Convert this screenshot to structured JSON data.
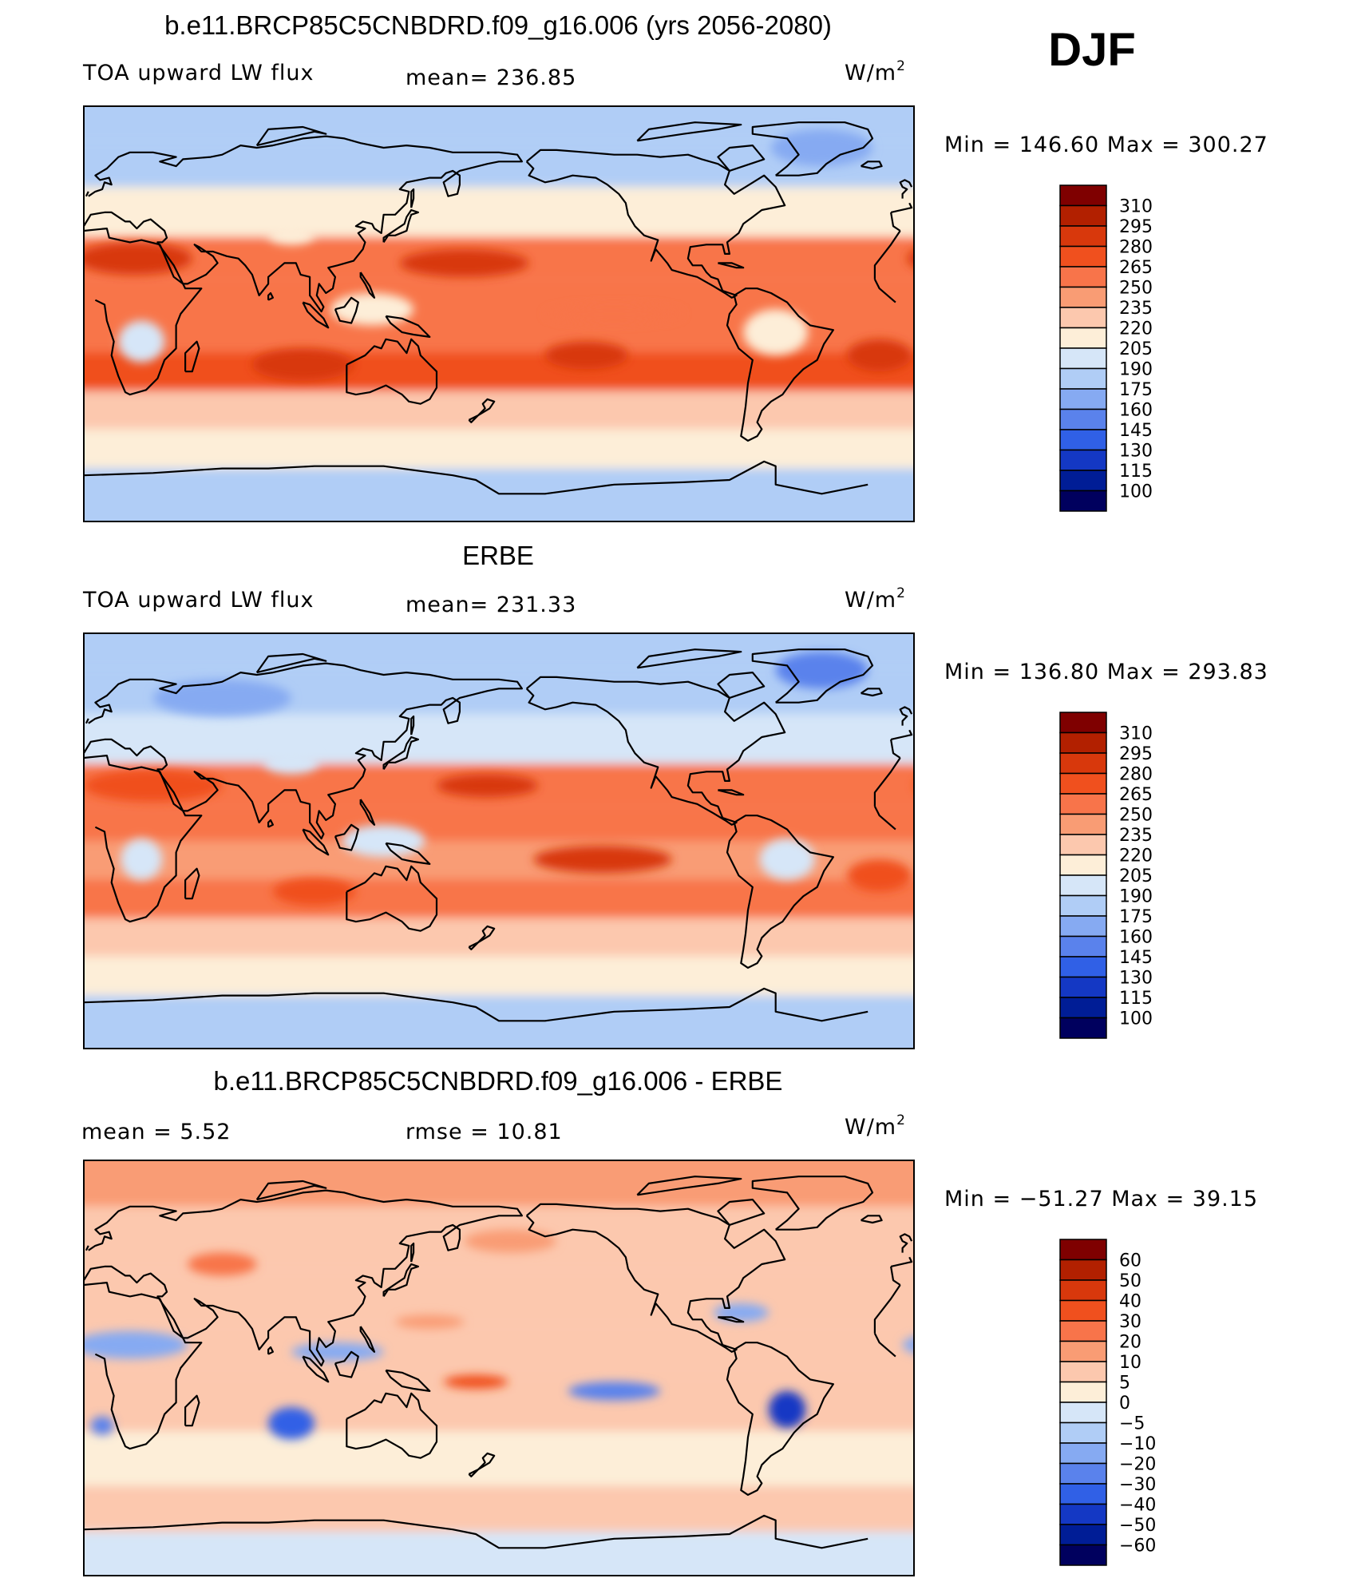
{
  "season": "DJF",
  "units": {
    "prefix": "W/m",
    "sup": "2"
  },
  "panels": [
    {
      "title": "b.e11.BRCP85C5CNBDRD.f09_g16.006 (yrs 2056-2080)",
      "left_label": "TOA upward LW flux",
      "center_label": "mean=  236.85",
      "minmax": "Min  =  146.60  Max  =  300.27",
      "colorbar_labels": [
        "310",
        "295",
        "280",
        "265",
        "250",
        "235",
        "220",
        "205",
        "190",
        "175",
        "160",
        "145",
        "130",
        "115",
        "100"
      ]
    },
    {
      "title": "ERBE",
      "left_label": "TOA upward LW flux",
      "center_label": "mean=  231.33",
      "minmax": "Min  =  136.80  Max  =  293.83",
      "colorbar_labels": [
        "310",
        "295",
        "280",
        "265",
        "250",
        "235",
        "220",
        "205",
        "190",
        "175",
        "160",
        "145",
        "130",
        "115",
        "100"
      ]
    },
    {
      "title": "b.e11.BRCP85C5CNBDRD.f09_g16.006 - ERBE",
      "left_label": "mean  =      5.52",
      "center_label": "rmse  =    10.81",
      "minmax": "Min  =  −51.27  Max  =    39.15",
      "colorbar_labels": [
        "60",
        "50",
        "40",
        "30",
        "20",
        "10",
        "5",
        "0",
        "−5",
        "−10",
        "−20",
        "−30",
        "−40",
        "−50",
        "−60"
      ]
    }
  ],
  "colorbar_colors": [
    "#7f0000",
    "#b22000",
    "#d8380c",
    "#f0501e",
    "#f8744a",
    "#f99c74",
    "#fcc8ae",
    "#fdeed8",
    "#d6e6f8",
    "#b0cdf6",
    "#86aaf2",
    "#5a82ec",
    "#3060e6",
    "#1438c4",
    "#001d96",
    "#00005e"
  ],
  "chart_data": [
    {
      "type": "heatmap",
      "title": "b.e11.BRCP85C5CNBDRD.f09_g16.006 (yrs 2056-2080)",
      "variable": "TOA upward LW flux",
      "units": "W/m2",
      "mean": 236.85,
      "min": 146.6,
      "max": 300.27,
      "contour_levels": [
        100,
        115,
        130,
        145,
        160,
        175,
        190,
        205,
        220,
        235,
        250,
        265,
        280,
        295,
        310
      ],
      "lon_range": [
        0,
        360
      ],
      "lat_range": [
        -90,
        90
      ],
      "bands": [
        {
          "lat": 85,
          "lon_start": 0,
          "lon_end": 360,
          "value": 185
        },
        {
          "lat": 65,
          "lon_start": 0,
          "lon_end": 360,
          "value": 188
        },
        {
          "lat": 45,
          "lon_start": 0,
          "lon_end": 360,
          "value": 212
        },
        {
          "lat": 22,
          "lon_start": 0,
          "lon_end": 360,
          "value": 262
        },
        {
          "lat": 8,
          "lon_start": 0,
          "lon_end": 360,
          "value": 258
        },
        {
          "lat": -8,
          "lon_start": 0,
          "lon_end": 360,
          "value": 252
        },
        {
          "lat": -25,
          "lon_start": 0,
          "lon_end": 360,
          "value": 268
        },
        {
          "lat": -42,
          "lon_start": 0,
          "lon_end": 360,
          "value": 232
        },
        {
          "lat": -58,
          "lon_start": 0,
          "lon_end": 360,
          "value": 212
        },
        {
          "lat": -76,
          "lon_start": 0,
          "lon_end": 360,
          "value": 175
        }
      ],
      "blobs": [
        {
          "lon": 165,
          "lat": 22,
          "rx": 28,
          "ry": 6,
          "value": 286
        },
        {
          "lon": 95,
          "lat": -22,
          "rx": 22,
          "ry": 7,
          "value": 284
        },
        {
          "lon": 218,
          "lat": -18,
          "rx": 18,
          "ry": 6,
          "value": 282
        },
        {
          "lon": 345,
          "lat": -18,
          "rx": 14,
          "ry": 7,
          "value": 282
        },
        {
          "lon": 22,
          "lat": 24,
          "rx": 25,
          "ry": 7,
          "value": 280
        },
        {
          "lon": 25,
          "lat": -12,
          "rx": 10,
          "ry": 9,
          "value": 195
        },
        {
          "lon": 300,
          "lat": -8,
          "rx": 14,
          "ry": 10,
          "value": 212
        },
        {
          "lon": 125,
          "lat": 2,
          "rx": 18,
          "ry": 7,
          "value": 208
        },
        {
          "lon": 320,
          "lat": 72,
          "rx": 22,
          "ry": 8,
          "value": 160
        },
        {
          "lon": 90,
          "lat": 34,
          "rx": 10,
          "ry": 4,
          "value": 205
        },
        {
          "lon": 230,
          "lat": 0,
          "rx": 30,
          "ry": 4,
          "value": 262
        }
      ]
    },
    {
      "type": "heatmap",
      "title": "ERBE",
      "variable": "TOA upward LW flux",
      "units": "W/m2",
      "mean": 231.33,
      "min": 136.8,
      "max": 293.83,
      "contour_levels": [
        100,
        115,
        130,
        145,
        160,
        175,
        190,
        205,
        220,
        235,
        250,
        265,
        280,
        295,
        310
      ],
      "lon_range": [
        0,
        360
      ],
      "lat_range": [
        -90,
        90
      ],
      "bands": [
        {
          "lat": 85,
          "lon_start": 0,
          "lon_end": 360,
          "value": 175
        },
        {
          "lat": 65,
          "lon_start": 0,
          "lon_end": 360,
          "value": 180
        },
        {
          "lat": 45,
          "lon_start": 0,
          "lon_end": 360,
          "value": 200
        },
        {
          "lat": 22,
          "lon_start": 0,
          "lon_end": 360,
          "value": 260
        },
        {
          "lat": 8,
          "lon_start": 0,
          "lon_end": 360,
          "value": 250
        },
        {
          "lat": -8,
          "lon_start": 0,
          "lon_end": 360,
          "value": 246
        },
        {
          "lat": -25,
          "lon_start": 0,
          "lon_end": 360,
          "value": 260
        },
        {
          "lat": -42,
          "lon_start": 0,
          "lon_end": 360,
          "value": 228
        },
        {
          "lat": -58,
          "lon_start": 0,
          "lon_end": 360,
          "value": 208
        },
        {
          "lat": -76,
          "lon_start": 0,
          "lon_end": 360,
          "value": 178
        }
      ],
      "blobs": [
        {
          "lon": 175,
          "lat": 24,
          "rx": 22,
          "ry": 5,
          "value": 282
        },
        {
          "lon": 225,
          "lat": -8,
          "rx": 30,
          "ry": 6,
          "value": 280
        },
        {
          "lon": 345,
          "lat": -15,
          "rx": 14,
          "ry": 7,
          "value": 278
        },
        {
          "lon": 30,
          "lat": 24,
          "rx": 30,
          "ry": 7,
          "value": 278
        },
        {
          "lon": 100,
          "lat": -22,
          "rx": 18,
          "ry": 6,
          "value": 272
        },
        {
          "lon": 25,
          "lat": -8,
          "rx": 9,
          "ry": 9,
          "value": 198
        },
        {
          "lon": 305,
          "lat": -8,
          "rx": 12,
          "ry": 9,
          "value": 196
        },
        {
          "lon": 130,
          "lat": 0,
          "rx": 18,
          "ry": 7,
          "value": 196
        },
        {
          "lon": 320,
          "lat": 74,
          "rx": 20,
          "ry": 8,
          "value": 150
        },
        {
          "lon": 90,
          "lat": 34,
          "rx": 12,
          "ry": 5,
          "value": 198
        },
        {
          "lon": 60,
          "lat": 62,
          "rx": 30,
          "ry": 8,
          "value": 170
        }
      ]
    },
    {
      "type": "heatmap",
      "title": "b.e11.BRCP85C5CNBDRD.f09_g16.006 - ERBE",
      "variable": "TOA upward LW flux difference",
      "units": "W/m2",
      "mean": 5.52,
      "rmse": 10.81,
      "min": -51.27,
      "max": 39.15,
      "contour_levels": [
        -60,
        -50,
        -40,
        -30,
        -20,
        -10,
        -5,
        0,
        5,
        10,
        20,
        30,
        40,
        50,
        60
      ],
      "lon_range": [
        0,
        360
      ],
      "lat_range": [
        -90,
        90
      ],
      "bands": [
        {
          "lat": 85,
          "lon_start": 0,
          "lon_end": 360,
          "value": 12
        },
        {
          "lat": 55,
          "lon_start": 0,
          "lon_end": 360,
          "value": 9
        },
        {
          "lat": 30,
          "lon_start": 0,
          "lon_end": 360,
          "value": 7
        },
        {
          "lat": 8,
          "lon_start": 0,
          "lon_end": 360,
          "value": 6
        },
        {
          "lat": -15,
          "lon_start": 0,
          "lon_end": 360,
          "value": 6
        },
        {
          "lat": -40,
          "lon_start": 0,
          "lon_end": 360,
          "value": 4
        },
        {
          "lat": -62,
          "lon_start": 0,
          "lon_end": 360,
          "value": 6
        },
        {
          "lat": -80,
          "lon_start": 0,
          "lon_end": 360,
          "value": -3
        }
      ],
      "blobs": [
        {
          "lon": 90,
          "lat": -24,
          "rx": 10,
          "ry": 7,
          "value": -35
        },
        {
          "lon": 305,
          "lat": -18,
          "rx": 8,
          "ry": 8,
          "value": -45
        },
        {
          "lon": 230,
          "lat": -10,
          "rx": 20,
          "ry": 4,
          "value": -25
        },
        {
          "lon": 20,
          "lat": 10,
          "rx": 25,
          "ry": 6,
          "value": -15
        },
        {
          "lon": 8,
          "lat": -25,
          "rx": 5,
          "ry": 4,
          "value": -28
        },
        {
          "lon": 170,
          "lat": -6,
          "rx": 14,
          "ry": 3,
          "value": 32
        },
        {
          "lon": 285,
          "lat": 24,
          "rx": 12,
          "ry": 4,
          "value": -18
        },
        {
          "lon": 110,
          "lat": 7,
          "rx": 20,
          "ry": 4,
          "value": -15
        },
        {
          "lon": 150,
          "lat": 20,
          "rx": 15,
          "ry": 3,
          "value": 15
        },
        {
          "lon": 185,
          "lat": 55,
          "rx": 20,
          "ry": 5,
          "value": 18
        },
        {
          "lon": 60,
          "lat": 45,
          "rx": 15,
          "ry": 5,
          "value": 20
        }
      ]
    }
  ]
}
